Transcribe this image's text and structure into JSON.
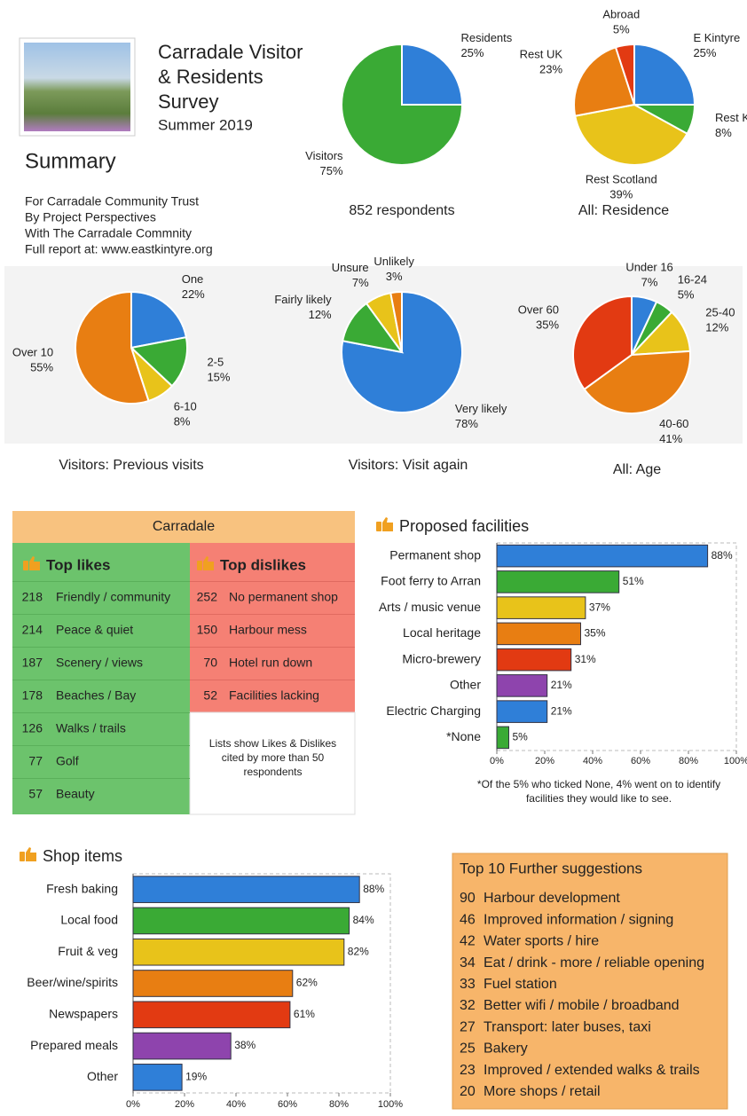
{
  "header": {
    "title_lines": [
      "Carradale Visitor",
      "& Residents",
      "Survey"
    ],
    "subtitle": "Summer 2019",
    "summary": "Summary",
    "credits": [
      "For Carradale Community Trust",
      "By Project Perspectives",
      "With The Carradale Commnity",
      "Full report at: www.eastkintyre.org"
    ]
  },
  "chart_data": [
    {
      "type": "pie",
      "title": "852 respondents",
      "categories": [
        "Residents",
        "Visitors"
      ],
      "values": [
        25,
        75
      ],
      "value_labels": [
        "25%",
        "75%"
      ],
      "colors": [
        "#2f7fd8",
        "#3aaa35"
      ]
    },
    {
      "type": "pie",
      "title": "All: Residence",
      "categories": [
        "E Kintyre",
        "Rest KIntyre",
        "Rest Scotland",
        "Rest UK",
        "Abroad"
      ],
      "values": [
        25,
        8,
        39,
        23,
        5
      ],
      "value_labels": [
        "25%",
        "8%",
        "39%",
        "23%",
        "5%"
      ],
      "colors": [
        "#2f7fd8",
        "#3aaa35",
        "#e8c31a",
        "#e87e12",
        "#e23a12"
      ]
    },
    {
      "type": "pie",
      "title": "Visitors: Previous visits",
      "categories": [
        "One",
        "2-5",
        "6-10",
        "Over 10"
      ],
      "values": [
        22,
        15,
        8,
        55
      ],
      "value_labels": [
        "22%",
        "15%",
        "8%",
        "55%"
      ],
      "colors": [
        "#2f7fd8",
        "#3aaa35",
        "#e8c31a",
        "#e87e12"
      ]
    },
    {
      "type": "pie",
      "title": "Visitors: Visit again",
      "categories": [
        "Very likely",
        "Fairly likely",
        "Unsure",
        "Unlikely"
      ],
      "values": [
        78,
        12,
        7,
        3
      ],
      "value_labels": [
        "78%",
        "12%",
        "7%",
        "3%"
      ],
      "colors": [
        "#2f7fd8",
        "#3aaa35",
        "#e8c31a",
        "#e87e12"
      ]
    },
    {
      "type": "pie",
      "title": "All: Age",
      "categories": [
        "Under 16",
        "16-24",
        "25-40",
        "40-60",
        "Over 60"
      ],
      "values": [
        7,
        5,
        12,
        41,
        35
      ],
      "value_labels": [
        "7%",
        "5%",
        "12%",
        "41%",
        "35%"
      ],
      "colors": [
        "#2f7fd8",
        "#3aaa35",
        "#e8c31a",
        "#e87e12",
        "#e23a12"
      ]
    },
    {
      "type": "bar",
      "orientation": "horizontal",
      "title": "Proposed facilities",
      "categories": [
        "Permanent shop",
        "Foot ferry to Arran",
        "Arts / music venue",
        "Local heritage",
        "Micro-brewery",
        "Other",
        "Electric Charging",
        "*None"
      ],
      "values": [
        88,
        51,
        37,
        35,
        31,
        21,
        21,
        5
      ],
      "value_labels": [
        "88%",
        "51%",
        "37%",
        "35%",
        "31%",
        "21%",
        "21%",
        "5%"
      ],
      "colors": [
        "#2f7fd8",
        "#3aaa35",
        "#e8c31a",
        "#e87e12",
        "#e23a12",
        "#8e44ad",
        "#2f7fd8",
        "#3aaa35"
      ],
      "xlim": [
        0,
        100
      ],
      "xticks": [
        {
          "value": 0,
          "label": "0%"
        },
        {
          "value": 20,
          "label": "20%"
        },
        {
          "value": 40,
          "label": "40%"
        },
        {
          "value": 60,
          "label": "60%"
        },
        {
          "value": 80,
          "label": "80%"
        },
        {
          "value": 100,
          "label": "100%"
        }
      ],
      "footnote": "*Of the 5% who ticked None, 4% went on to identify facilities they would like to see."
    },
    {
      "type": "bar",
      "orientation": "horizontal",
      "title": "Shop items",
      "categories": [
        "Fresh baking",
        "Local food",
        "Fruit & veg",
        "Beer/wine/spirits",
        "Newspapers",
        "Prepared meals",
        "Other"
      ],
      "values": [
        88,
        84,
        82,
        62,
        61,
        38,
        19
      ],
      "value_labels": [
        "88%",
        "84%",
        "82%",
        "62%",
        "61%",
        "38%",
        "19%"
      ],
      "colors": [
        "#2f7fd8",
        "#3aaa35",
        "#e8c31a",
        "#e87e12",
        "#e23a12",
        "#8e44ad",
        "#2f7fd8"
      ],
      "xlim": [
        0,
        100
      ],
      "xticks": [
        {
          "value": 0,
          "label": "0%"
        },
        {
          "value": 20,
          "label": "20%"
        },
        {
          "value": 40,
          "label": "40%"
        },
        {
          "value": 60,
          "label": "60%"
        },
        {
          "value": 80,
          "label": "80%"
        },
        {
          "value": 100,
          "label": "100%"
        }
      ]
    }
  ],
  "tables": {
    "carradale": {
      "title": "Carradale",
      "likes": {
        "heading": "Top likes",
        "rows": [
          [
            "218",
            "Friendly / community"
          ],
          [
            "214",
            "Peace & quiet"
          ],
          [
            "187",
            "Scenery / views"
          ],
          [
            "178",
            "Beaches / Bay"
          ],
          [
            "126",
            "Walks / trails"
          ],
          [
            "77",
            "Golf"
          ],
          [
            "57",
            "Beauty"
          ]
        ]
      },
      "dislikes": {
        "heading": "Top dislikes",
        "rows": [
          [
            "252",
            "No permanent shop"
          ],
          [
            "150",
            "Harbour mess"
          ],
          [
            "70",
            "Hotel run down"
          ],
          [
            "52",
            "Facilities lacking"
          ]
        ]
      },
      "note": "Lists show Likes & Dislikes cited by more than 50 respondents"
    },
    "suggestions": {
      "title": "Top 10 Further suggestions",
      "rows": [
        [
          "90",
          "Harbour development"
        ],
        [
          "46",
          "Improved information / signing"
        ],
        [
          "42",
          "Water sports / hire"
        ],
        [
          "34",
          "Eat / drink - more / reliable opening"
        ],
        [
          "33",
          "Fuel station"
        ],
        [
          "32",
          "Better wifi / mobile / broadband"
        ],
        [
          "27",
          "Transport: later buses, taxi"
        ],
        [
          "25",
          "Bakery"
        ],
        [
          "23",
          "Improved / extended walks & trails"
        ],
        [
          "20",
          "More shops / retail"
        ]
      ]
    }
  }
}
